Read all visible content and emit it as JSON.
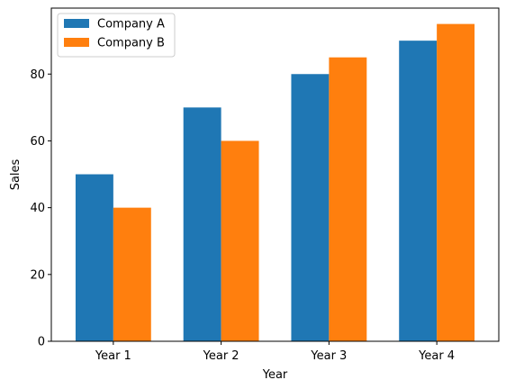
{
  "chart_data": {
    "type": "bar",
    "title": "",
    "xlabel": "Year",
    "ylabel": "Sales",
    "categories": [
      "Year 1",
      "Year 2",
      "Year 3",
      "Year 4"
    ],
    "series": [
      {
        "name": "Company A",
        "values": [
          50,
          70,
          80,
          90
        ],
        "color": "#1f77b4"
      },
      {
        "name": "Company B",
        "values": [
          40,
          60,
          85,
          95
        ],
        "color": "#ff7f0e"
      }
    ],
    "ylim": [
      0,
      99.75
    ],
    "yticks": [
      0,
      20,
      40,
      60,
      80
    ],
    "grid": false,
    "legend": {
      "position": "top-left"
    }
  }
}
